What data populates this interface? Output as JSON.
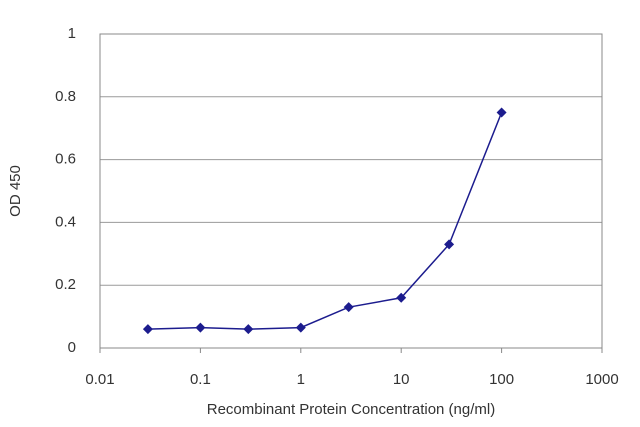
{
  "chart_data": {
    "type": "line",
    "x_label": "Recombinant Protein Concentration (ng/ml)",
    "y_label": "OD 450",
    "x": [
      0.03,
      0.1,
      0.3,
      1,
      3,
      10,
      30,
      100
    ],
    "series": [
      {
        "name": "OD 450",
        "color": "#1c1c8e",
        "values": [
          0.06,
          0.065,
          0.06,
          0.065,
          0.13,
          0.16,
          0.33,
          0.75
        ]
      }
    ],
    "xscale": "log",
    "xlim": [
      0.01,
      1000
    ],
    "xticks": [
      0.01,
      0.1,
      1,
      10,
      100,
      1000
    ],
    "ylim": [
      0,
      1
    ],
    "yticks": [
      0,
      0.2,
      0.4,
      0.6,
      0.8,
      1
    ],
    "grid": true
  }
}
